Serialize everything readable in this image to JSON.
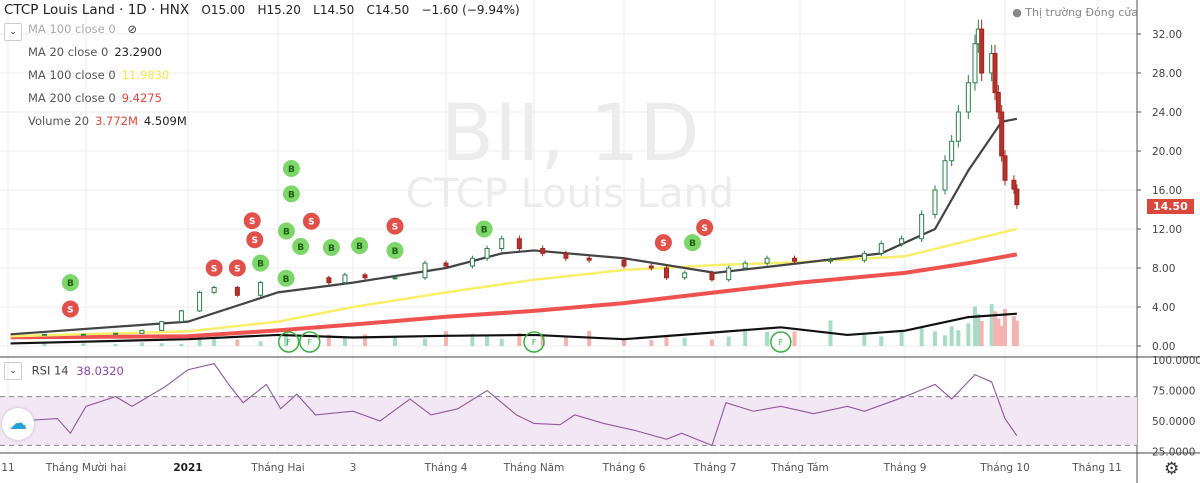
{
  "header": {
    "title": "CTCP Louis Land · 1D · HNX",
    "open": "O15.00",
    "high": "H15.20",
    "low": "L14.50",
    "close": "C14.50",
    "change": "−1.60 (−9.94%)",
    "market_status": "Thị trường Đóng cửa"
  },
  "indicators": [
    {
      "label": "MA 100 close 0",
      "value": "",
      "hidden": true
    },
    {
      "label": "MA 20 close 0",
      "value": "23.2900",
      "color": "#222222"
    },
    {
      "label": "MA 100 close 0",
      "value": "11.9830",
      "color": "#f2e94e"
    },
    {
      "label": "MA 200 close 0",
      "value": "9.4275",
      "color": "#e0514b"
    },
    {
      "label": "Volume 20",
      "value": "3.772M",
      "value2": "4.509M",
      "color": "#e0514b"
    }
  ],
  "watermark": {
    "symbol": "BII, 1D",
    "name": "CTCP Louis Land"
  },
  "last_price": "14.50",
  "rsi": {
    "label": "RSI 14",
    "value": "38.0320",
    "color": "#8e44ad"
  },
  "icons": {
    "collapse": "chevron-down-icon",
    "hide": "eye-off-icon",
    "logo": "tradingview-cloud-icon",
    "settings": "gear-icon"
  },
  "chart_data": {
    "type": "candlestick",
    "price_axis": {
      "ylim": [
        -1,
        34
      ],
      "ticks": [
        "32.00",
        "28.00",
        "24.00",
        "20.00",
        "16.00",
        "12.00",
        "8.00",
        "4.00",
        "0.00"
      ]
    },
    "rsi_axis": {
      "ylim": [
        22,
        100
      ],
      "ticks": [
        "100.0000",
        "75.0000",
        "50.0000",
        "25.0000"
      ],
      "bands": [
        30,
        70
      ]
    },
    "time_ticks": [
      {
        "label": "11",
        "date": "2020-11-01"
      },
      {
        "label": "Tháng Mười hai",
        "date": "2020-12-01"
      },
      {
        "label": "2021",
        "date": "2021-01-01",
        "bold": true
      },
      {
        "label": "Tháng Hai",
        "date": "2021-02-01"
      },
      {
        "label": "3",
        "date": "2021-03-01"
      },
      {
        "label": "Tháng 4",
        "date": "2021-04-01"
      },
      {
        "label": "Tháng Năm",
        "date": "2021-05-01"
      },
      {
        "label": "Tháng 6",
        "date": "2021-06-01"
      },
      {
        "label": "Tháng 7",
        "date": "2021-07-01"
      },
      {
        "label": "Tháng Tám",
        "date": "2021-08-01"
      },
      {
        "label": "Tháng 9",
        "date": "2021-09-01"
      },
      {
        "label": "Tháng 10",
        "date": "2021-10-01"
      },
      {
        "label": "Tháng 11",
        "date": "2021-11-01"
      }
    ],
    "closes": [
      [
        "2020-11-02",
        1.2
      ],
      [
        "2020-11-15",
        1.2
      ],
      [
        "2020-11-30",
        1.2
      ],
      [
        "2020-12-10",
        1.3
      ],
      [
        "2020-12-18",
        1.6
      ],
      [
        "2020-12-24",
        2.5
      ],
      [
        "2020-12-30",
        3.6
      ],
      [
        "2021-01-05",
        5.5
      ],
      [
        "2021-01-10",
        6.0
      ],
      [
        "2021-01-18",
        5.2
      ],
      [
        "2021-01-26",
        6.5
      ],
      [
        "2021-02-04",
        7.0
      ],
      [
        "2021-02-20",
        6.5
      ],
      [
        "2021-02-26",
        7.3
      ],
      [
        "2021-03-05",
        7.0
      ],
      [
        "2021-03-15",
        7.0
      ],
      [
        "2021-03-25",
        8.5
      ],
      [
        "2021-04-01",
        8.2
      ],
      [
        "2021-04-10",
        9.0
      ],
      [
        "2021-04-15",
        10.0
      ],
      [
        "2021-04-20",
        11.0
      ],
      [
        "2021-04-26",
        10.0
      ],
      [
        "2021-05-04",
        9.5
      ],
      [
        "2021-05-12",
        9.0
      ],
      [
        "2021-05-20",
        8.8
      ],
      [
        "2021-06-01",
        8.2
      ],
      [
        "2021-06-10",
        8.0
      ],
      [
        "2021-06-15",
        7.0
      ],
      [
        "2021-06-21",
        7.5
      ],
      [
        "2021-06-30",
        6.8
      ],
      [
        "2021-07-06",
        8.0
      ],
      [
        "2021-07-12",
        8.5
      ],
      [
        "2021-07-20",
        9.0
      ],
      [
        "2021-07-30",
        8.7
      ],
      [
        "2021-08-10",
        8.8
      ],
      [
        "2021-08-20",
        9.5
      ],
      [
        "2021-08-25",
        10.5
      ],
      [
        "2021-08-31",
        11.0
      ],
      [
        "2021-09-06",
        13.5
      ],
      [
        "2021-09-10",
        16.0
      ],
      [
        "2021-09-13",
        19.0
      ],
      [
        "2021-09-15",
        21.0
      ],
      [
        "2021-09-17",
        24.0
      ],
      [
        "2021-09-20",
        27.0
      ],
      [
        "2021-09-22",
        31.0
      ],
      [
        "2021-09-23",
        32.5
      ],
      [
        "2021-09-24",
        28.0
      ],
      [
        "2021-09-27",
        30.0
      ],
      [
        "2021-09-28",
        26.0
      ],
      [
        "2021-09-29",
        24.0
      ],
      [
        "2021-09-30",
        19.5
      ],
      [
        "2021-10-01",
        17.0
      ],
      [
        "2021-10-04",
        16.1
      ],
      [
        "2021-10-05",
        14.5
      ]
    ],
    "ma20": [
      [
        "2020-11-02",
        1.2
      ],
      [
        "2021-01-01",
        2.5
      ],
      [
        "2021-02-01",
        5.5
      ],
      [
        "2021-03-01",
        6.5
      ],
      [
        "2021-04-01",
        8.0
      ],
      [
        "2021-04-20",
        9.5
      ],
      [
        "2021-05-01",
        9.8
      ],
      [
        "2021-06-01",
        9.0
      ],
      [
        "2021-07-01",
        7.5
      ],
      [
        "2021-08-01",
        8.5
      ],
      [
        "2021-08-25",
        9.5
      ],
      [
        "2021-09-10",
        12.0
      ],
      [
        "2021-09-20",
        18.0
      ],
      [
        "2021-09-30",
        23.0
      ],
      [
        "2021-10-05",
        23.3
      ]
    ],
    "ma100": [
      [
        "2020-11-02",
        1.0
      ],
      [
        "2021-01-01",
        1.5
      ],
      [
        "2021-02-01",
        2.5
      ],
      [
        "2021-03-01",
        4.0
      ],
      [
        "2021-04-01",
        5.5
      ],
      [
        "2021-05-01",
        6.8
      ],
      [
        "2021-06-01",
        7.8
      ],
      [
        "2021-07-01",
        8.3
      ],
      [
        "2021-08-01",
        8.6
      ],
      [
        "2021-09-01",
        9.2
      ],
      [
        "2021-09-20",
        10.8
      ],
      [
        "2021-10-05",
        12.0
      ]
    ],
    "ma200": [
      [
        "2020-11-02",
        0.9
      ],
      [
        "2021-01-01",
        1.0
      ],
      [
        "2021-02-01",
        1.6
      ],
      [
        "2021-03-01",
        2.2
      ],
      [
        "2021-04-01",
        3.0
      ],
      [
        "2021-05-01",
        3.6
      ],
      [
        "2021-06-01",
        4.4
      ],
      [
        "2021-07-01",
        5.5
      ],
      [
        "2021-08-01",
        6.5
      ],
      [
        "2021-09-01",
        7.5
      ],
      [
        "2021-09-20",
        8.5
      ],
      [
        "2021-10-05",
        9.4
      ]
    ],
    "volume_ma": [
      [
        "2020-11-02",
        0.3
      ],
      [
        "2021-01-01",
        0.8
      ],
      [
        "2021-02-01",
        1.3
      ],
      [
        "2021-03-01",
        1.0
      ],
      [
        "2021-04-01",
        1.2
      ],
      [
        "2021-05-01",
        1.3
      ],
      [
        "2021-06-01",
        0.8
      ],
      [
        "2021-07-01",
        1.6
      ],
      [
        "2021-07-25",
        2.2
      ],
      [
        "2021-08-15",
        1.3
      ],
      [
        "2021-09-01",
        1.8
      ],
      [
        "2021-09-20",
        3.4
      ],
      [
        "2021-10-05",
        3.8
      ]
    ],
    "rsi_values": [
      [
        "2020-11-05",
        50
      ],
      [
        "2020-11-20",
        52
      ],
      [
        "2020-11-25",
        40
      ],
      [
        "2020-12-01",
        62
      ],
      [
        "2020-12-10",
        70
      ],
      [
        "2020-12-15",
        62
      ],
      [
        "2020-12-25",
        78
      ],
      [
        "2021-01-01",
        92
      ],
      [
        "2021-01-10",
        97
      ],
      [
        "2021-01-15",
        80
      ],
      [
        "2021-01-20",
        65
      ],
      [
        "2021-01-28",
        80
      ],
      [
        "2021-02-02",
        60
      ],
      [
        "2021-02-08",
        72
      ],
      [
        "2021-02-15",
        55
      ],
      [
        "2021-03-01",
        58
      ],
      [
        "2021-03-10",
        50
      ],
      [
        "2021-03-20",
        68
      ],
      [
        "2021-03-27",
        55
      ],
      [
        "2021-04-05",
        60
      ],
      [
        "2021-04-15",
        75
      ],
      [
        "2021-04-25",
        55
      ],
      [
        "2021-05-01",
        48
      ],
      [
        "2021-05-10",
        47
      ],
      [
        "2021-05-15",
        55
      ],
      [
        "2021-05-25",
        48
      ],
      [
        "2021-06-05",
        42
      ],
      [
        "2021-06-15",
        35
      ],
      [
        "2021-06-20",
        40
      ],
      [
        "2021-06-30",
        30
      ],
      [
        "2021-07-05",
        65
      ],
      [
        "2021-07-15",
        58
      ],
      [
        "2021-07-25",
        62
      ],
      [
        "2021-08-05",
        56
      ],
      [
        "2021-08-15",
        62
      ],
      [
        "2021-08-20",
        58
      ],
      [
        "2021-09-01",
        70
      ],
      [
        "2021-09-10",
        80
      ],
      [
        "2021-09-15",
        68
      ],
      [
        "2021-09-22",
        88
      ],
      [
        "2021-09-27",
        82
      ],
      [
        "2021-10-01",
        52
      ],
      [
        "2021-10-05",
        38
      ]
    ],
    "signals": [
      {
        "date": "2020-11-25",
        "label": "B",
        "price": 6.5
      },
      {
        "date": "2020-11-25",
        "label": "S",
        "price": 3.8
      },
      {
        "date": "2021-01-10",
        "label": "S",
        "price": 8.0
      },
      {
        "date": "2021-01-18",
        "label": "S",
        "price": 8.0
      },
      {
        "date": "2021-01-24",
        "label": "S",
        "price": 10.9
      },
      {
        "date": "2021-01-26",
        "label": "B",
        "price": 8.5
      },
      {
        "date": "2021-01-28",
        "label": "B",
        "price": 11.8
      },
      {
        "date": "2021-01-30",
        "label": "S",
        "price": 10.8
      },
      {
        "date": "2021-02-02",
        "label": "B",
        "price": 10.2
      },
      {
        "date": "2021-02-04",
        "label": "B",
        "price": 9.0
      },
      {
        "date": "2021-02-06",
        "label": "B",
        "price": 18.2
      },
      {
        "date": "2021-02-06",
        "label": "B",
        "price": 15.6
      },
      {
        "date": "2021-02-06",
        "label": "S",
        "price": 12.8
      },
      {
        "date": "2021-02-06",
        "label": "B",
        "price": 10.1
      },
      {
        "date": "2021-02-24",
        "label": "B",
        "price": 10.3
      },
      {
        "date": "2021-03-15",
        "label": "S",
        "price": 12.3
      },
      {
        "date": "2021-03-15",
        "label": "B",
        "price": 9.8
      },
      {
        "date": "2021-04-14",
        "label": "B",
        "price": 12.0
      },
      {
        "date": "2021-06-14",
        "label": "S",
        "price": 10.6
      },
      {
        "date": "2021-06-17",
        "label": "B",
        "price": 10.6
      },
      {
        "date": "2021-06-21",
        "label": "S",
        "price": 10.1
      }
    ],
    "volume_markers": [
      {
        "date": "2021-02-05",
        "label": "F"
      },
      {
        "date": "2021-02-08",
        "label": "F"
      },
      {
        "date": "2021-05-01",
        "label": "F"
      },
      {
        "date": "2021-07-25",
        "label": "F"
      }
    ]
  }
}
